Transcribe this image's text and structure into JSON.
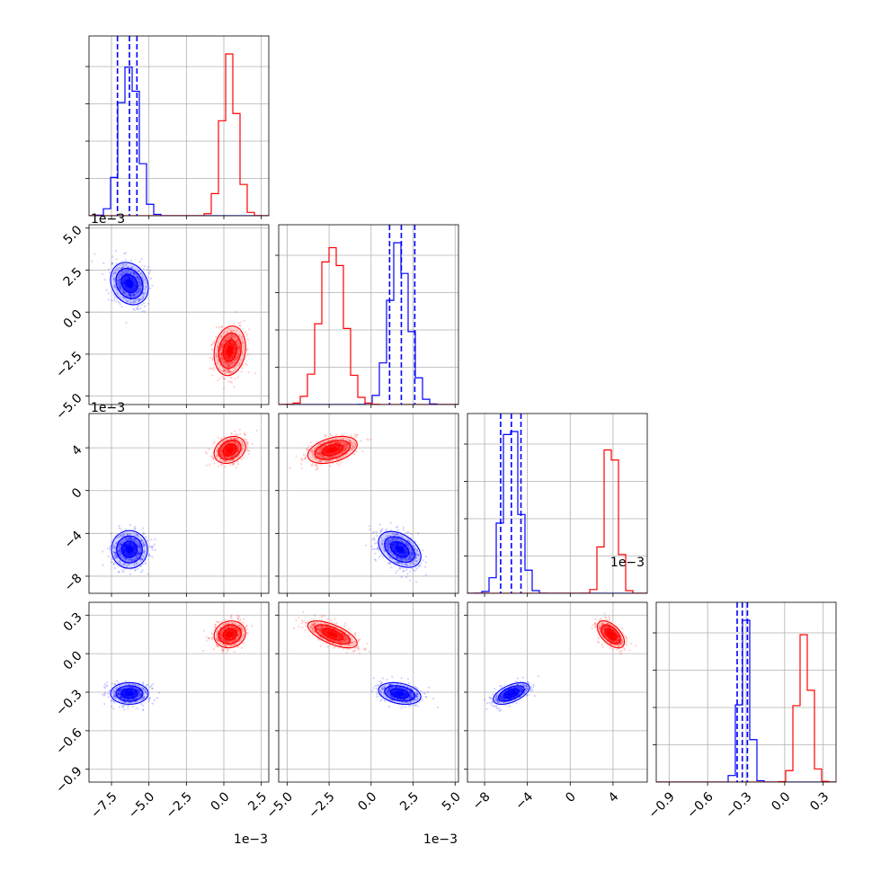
{
  "chart_data": {
    "type": "corner",
    "grid": true,
    "series": [
      {
        "color": "#0000ff",
        "means": [
          -0.0063,
          0.0017,
          -0.0055,
          -0.31
        ],
        "sds": [
          0.0006,
          0.0006,
          0.0008,
          0.04
        ]
      },
      {
        "color": "#ff0000",
        "means": [
          0.0004,
          -0.0023,
          0.0038,
          0.15
        ],
        "sds": [
          0.0005,
          0.0007,
          0.0006,
          0.05
        ]
      }
    ],
    "correlations": {
      "blue": {
        "1-0": -0.2,
        "2-0": 0.0,
        "3-0": 0.0,
        "2-1": -0.4,
        "3-1": -0.3,
        "3-2": 0.55
      },
      "red": {
        "1-0": 0.15,
        "2-0": 0.25,
        "3-0": 0.1,
        "2-1": 0.4,
        "3-1": -0.65,
        "3-2": -0.55
      }
    },
    "quantile_lines": {
      "color": "#0000ff",
      "values": [
        [
          -0.0071,
          -0.0063,
          -0.0058
        ],
        [
          0.0011,
          0.0018,
          0.0026
        ],
        [
          -0.0065,
          -0.0055,
          -0.0046
        ],
        [
          -0.37,
          -0.33,
          -0.29
        ]
      ]
    },
    "axes": [
      {
        "range": [
          -0.009,
          0.003
        ],
        "ticks": [
          -0.0075,
          -0.005,
          -0.0025,
          0.0,
          0.0025
        ],
        "tick_labels": [
          "−7.5",
          "−5.0",
          "−2.5",
          "0.0",
          "2.5"
        ],
        "offset_label": "1e−3"
      },
      {
        "range": [
          -0.0055,
          0.0052
        ],
        "ticks": [
          -0.005,
          -0.0025,
          0.0,
          0.0025,
          0.005
        ],
        "tick_labels": [
          "−5.0",
          "−2.5",
          "0.0",
          "2.5",
          "5.0"
        ],
        "offset_label": "1e−3"
      },
      {
        "range": [
          -0.0096,
          0.0072
        ],
        "ticks": [
          -0.008,
          -0.004,
          0.0,
          0.004
        ],
        "tick_labels": [
          "−8",
          "−4",
          "0",
          "4"
        ],
        "offset_label": "1e−3"
      },
      {
        "range": [
          -1.0,
          0.4
        ],
        "ticks": [
          -0.9,
          -0.6,
          -0.3,
          0.0,
          0.3
        ],
        "tick_labels": [
          "−0.9",
          "−0.6",
          "−0.3",
          "0.0",
          "0.3"
        ],
        "offset_label": ""
      }
    ]
  }
}
